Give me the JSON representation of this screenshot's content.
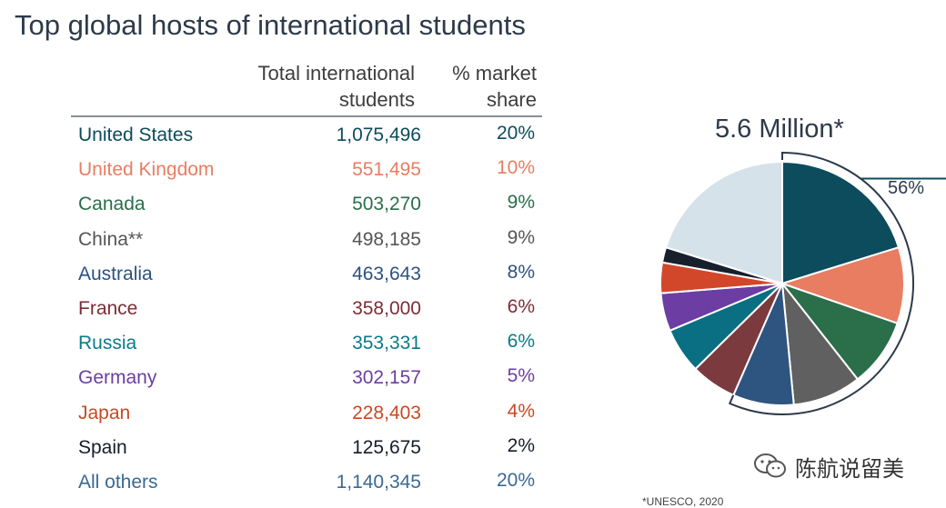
{
  "title": "Top global hosts of international students",
  "headers": {
    "total_line1": "Total international",
    "total_line2": "students",
    "share_line1": "% market",
    "share_line2": "share"
  },
  "rows": [
    {
      "country": "United States",
      "total": "1,075,496",
      "share": "20%",
      "color": "#0c4c5c"
    },
    {
      "country": "United Kingdom",
      "total": "551,495",
      "share": "10%",
      "color": "#e87d62"
    },
    {
      "country": "Canada",
      "total": "503,270",
      "share": "9%",
      "color": "#2a6e4a"
    },
    {
      "country": "China**",
      "total": "498,185",
      "share": "9%",
      "color": "#555555"
    },
    {
      "country": "Australia",
      "total": "463,643",
      "share": "8%",
      "color": "#2c5282"
    },
    {
      "country": "France",
      "total": "358,000",
      "share": "6%",
      "color": "#7b2e36"
    },
    {
      "country": "Russia",
      "total": "353,331",
      "share": "6%",
      "color": "#0a7a8a"
    },
    {
      "country": "Germany",
      "total": "302,157",
      "share": "5%",
      "color": "#6b3fa0"
    },
    {
      "country": "Japan",
      "total": "228,403",
      "share": "4%",
      "color": "#c84a22"
    },
    {
      "country": "Spain",
      "total": "125,675",
      "share": "2%",
      "color": "#151e2a"
    },
    {
      "country": "All others",
      "total": "1,140,345",
      "share": "20%",
      "color": "#3a6a94"
    }
  ],
  "chart_data": {
    "type": "pie",
    "title": "5.6 Million*",
    "slices": [
      {
        "label": "United States",
        "value": 20,
        "color": "#0c4c5c"
      },
      {
        "label": "United Kingdom",
        "value": 10,
        "color": "#e87d62"
      },
      {
        "label": "Canada",
        "value": 9,
        "color": "#2a6e4a"
      },
      {
        "label": "China**",
        "value": 9,
        "color": "#606060"
      },
      {
        "label": "Australia",
        "value": 8,
        "color": "#2e5480"
      },
      {
        "label": "France",
        "value": 6,
        "color": "#7a3a3e"
      },
      {
        "label": "Russia",
        "value": 6,
        "color": "#0a6f82"
      },
      {
        "label": "Germany",
        "value": 5,
        "color": "#6c3da3"
      },
      {
        "label": "Japan",
        "value": 4,
        "color": "#d2472a"
      },
      {
        "label": "Spain",
        "value": 2,
        "color": "#17202c"
      },
      {
        "label": "All others",
        "value": 20,
        "color": "#d6e2ea"
      }
    ],
    "bracket": {
      "label": "56%",
      "first_slice": 0,
      "last_slice": 4
    }
  },
  "footnote": "*UNESCO, 2020",
  "watermark": {
    "text": "陈航说留美",
    "icon": "wechat-logo-icon"
  }
}
